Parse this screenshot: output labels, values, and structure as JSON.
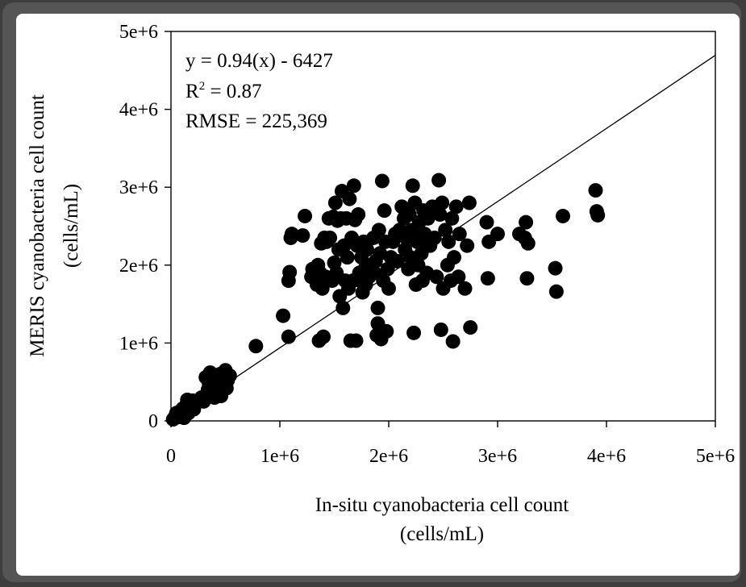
{
  "chart_data": {
    "type": "scatter",
    "xlabel": [
      "In-situ cyanobacteria cell count",
      "(cells/mL)"
    ],
    "ylabel": [
      "MERIS cyanobacteria cell count",
      "(cells/mL)"
    ],
    "xlim": [
      0,
      5000000
    ],
    "ylim": [
      0,
      5000000
    ],
    "x_ticks": [
      0,
      1000000,
      2000000,
      3000000,
      4000000,
      5000000
    ],
    "x_tick_labels": [
      "0",
      "1e+6",
      "2e+6",
      "3e+6",
      "4e+6",
      "5e+6"
    ],
    "y_ticks": [
      0,
      1000000,
      2000000,
      3000000,
      4000000,
      5000000
    ],
    "y_tick_labels": [
      "0",
      "1e+6",
      "2e+6",
      "3e+6",
      "4e+6",
      "5e+6"
    ],
    "grid": false,
    "annotation": {
      "equation": "y = 0.94(x) - 6427",
      "r2_prefix": "R",
      "r2_exp": "2",
      "r2_value": " = 0.87",
      "rmse": "RMSE = 225,369"
    },
    "fit_line": {
      "slope": 0.94,
      "intercept": -6427
    },
    "points": [
      [
        20000,
        20000
      ],
      [
        40000,
        60000
      ],
      [
        50000,
        100000
      ],
      [
        70000,
        50000
      ],
      [
        80000,
        120000
      ],
      [
        100000,
        80000
      ],
      [
        110000,
        160000
      ],
      [
        120000,
        40000
      ],
      [
        130000,
        120000
      ],
      [
        140000,
        200000
      ],
      [
        150000,
        270000
      ],
      [
        160000,
        100000
      ],
      [
        170000,
        180000
      ],
      [
        180000,
        220000
      ],
      [
        200000,
        260000
      ],
      [
        210000,
        150000
      ],
      [
        230000,
        230000
      ],
      [
        250000,
        260000
      ],
      [
        280000,
        300000
      ],
      [
        300000,
        250000
      ],
      [
        320000,
        560000
      ],
      [
        340000,
        400000
      ],
      [
        350000,
        480000
      ],
      [
        360000,
        620000
      ],
      [
        370000,
        350000
      ],
      [
        380000,
        450000
      ],
      [
        400000,
        300000
      ],
      [
        410000,
        560000
      ],
      [
        420000,
        400000
      ],
      [
        430000,
        500000
      ],
      [
        440000,
        380000
      ],
      [
        450000,
        600000
      ],
      [
        460000,
        320000
      ],
      [
        470000,
        460000
      ],
      [
        480000,
        550000
      ],
      [
        500000,
        650000
      ],
      [
        510000,
        420000
      ],
      [
        520000,
        520000
      ],
      [
        540000,
        580000
      ],
      [
        780000,
        960000
      ],
      [
        1030000,
        1350000
      ],
      [
        1080000,
        1080000
      ],
      [
        1080000,
        1800000
      ],
      [
        1090000,
        1910000
      ],
      [
        1100000,
        2350000
      ],
      [
        1110000,
        2400000
      ],
      [
        1210000,
        2380000
      ],
      [
        1230000,
        2630000
      ],
      [
        1290000,
        1850000
      ],
      [
        1300000,
        1950000
      ],
      [
        1340000,
        1750000
      ],
      [
        1350000,
        2000000
      ],
      [
        1360000,
        1030000
      ],
      [
        1370000,
        1900000
      ],
      [
        1380000,
        2280000
      ],
      [
        1390000,
        1700000
      ],
      [
        1400000,
        1080000
      ],
      [
        1410000,
        2350000
      ],
      [
        1420000,
        1850000
      ],
      [
        1430000,
        2300000
      ],
      [
        1450000,
        2600000
      ],
      [
        1460000,
        2350000
      ],
      [
        1480000,
        1800000
      ],
      [
        1490000,
        2620000
      ],
      [
        1500000,
        2030000
      ],
      [
        1510000,
        2800000
      ],
      [
        1520000,
        1900000
      ],
      [
        1530000,
        2570000
      ],
      [
        1540000,
        2200000
      ],
      [
        1550000,
        1600000
      ],
      [
        1560000,
        2600000
      ],
      [
        1570000,
        2950000
      ],
      [
        1580000,
        1450000
      ],
      [
        1590000,
        2250000
      ],
      [
        1600000,
        1800000
      ],
      [
        1610000,
        2600000
      ],
      [
        1620000,
        2100000
      ],
      [
        1630000,
        1700000
      ],
      [
        1640000,
        2850000
      ],
      [
        1650000,
        1030000
      ],
      [
        1660000,
        2350000
      ],
      [
        1670000,
        1800000
      ],
      [
        1680000,
        3020000
      ],
      [
        1690000,
        2580000
      ],
      [
        1700000,
        1030000
      ],
      [
        1710000,
        2250000
      ],
      [
        1720000,
        2650000
      ],
      [
        1730000,
        1900000
      ],
      [
        1740000,
        1800000
      ],
      [
        1750000,
        2100000
      ],
      [
        1760000,
        1650000
      ],
      [
        1770000,
        2300000
      ],
      [
        1780000,
        1950000
      ],
      [
        1790000,
        1750000
      ],
      [
        1800000,
        2200000
      ],
      [
        1820000,
        1850000
      ],
      [
        1840000,
        2000000
      ],
      [
        1860000,
        2350000
      ],
      [
        1870000,
        1900000
      ],
      [
        1880000,
        2050000
      ],
      [
        1890000,
        1100000
      ],
      [
        1900000,
        1250000
      ],
      [
        1900000,
        1450000
      ],
      [
        1910000,
        2450000
      ],
      [
        1920000,
        2150000
      ],
      [
        1930000,
        1050000
      ],
      [
        1940000,
        3080000
      ],
      [
        1950000,
        1800000
      ],
      [
        1960000,
        2700000
      ],
      [
        1970000,
        2300000
      ],
      [
        1980000,
        1150000
      ],
      [
        1990000,
        1950000
      ],
      [
        2000000,
        1700000
      ],
      [
        2020000,
        2100000
      ],
      [
        2040000,
        2300000
      ],
      [
        2060000,
        2400000
      ],
      [
        2080000,
        2050000
      ],
      [
        2100000,
        2450000
      ],
      [
        2120000,
        2750000
      ],
      [
        2140000,
        2600000
      ],
      [
        2150000,
        2200000
      ],
      [
        2160000,
        2350000
      ],
      [
        2180000,
        1950000
      ],
      [
        2190000,
        2650000
      ],
      [
        2200000,
        2100000
      ],
      [
        2210000,
        2450000
      ],
      [
        2220000,
        3020000
      ],
      [
        2230000,
        1130000
      ],
      [
        2240000,
        2800000
      ],
      [
        2250000,
        1750000
      ],
      [
        2260000,
        2300000
      ],
      [
        2270000,
        2000000
      ],
      [
        2280000,
        2550000
      ],
      [
        2300000,
        2150000
      ],
      [
        2310000,
        1800000
      ],
      [
        2320000,
        2700000
      ],
      [
        2330000,
        2400000
      ],
      [
        2350000,
        1900000
      ],
      [
        2360000,
        2600000
      ],
      [
        2380000,
        2250000
      ],
      [
        2400000,
        2750000
      ],
      [
        2420000,
        2350000
      ],
      [
        2440000,
        1850000
      ],
      [
        2460000,
        3090000
      ],
      [
        2470000,
        2650000
      ],
      [
        2480000,
        1170000
      ],
      [
        2490000,
        2800000
      ],
      [
        2500000,
        1700000
      ],
      [
        2520000,
        2450000
      ],
      [
        2540000,
        2000000
      ],
      [
        2550000,
        2300000
      ],
      [
        2570000,
        1800000
      ],
      [
        2580000,
        2600000
      ],
      [
        2590000,
        1020000
      ],
      [
        2600000,
        2100000
      ],
      [
        2620000,
        2750000
      ],
      [
        2640000,
        1850000
      ],
      [
        2650000,
        2400000
      ],
      [
        2700000,
        1700000
      ],
      [
        2720000,
        2250000
      ],
      [
        2740000,
        2800000
      ],
      [
        2750000,
        1200000
      ],
      [
        2900000,
        2550000
      ],
      [
        2910000,
        1830000
      ],
      [
        2920000,
        2300000
      ],
      [
        3000000,
        2400000
      ],
      [
        3200000,
        2400000
      ],
      [
        3250000,
        2350000
      ],
      [
        3260000,
        2550000
      ],
      [
        3270000,
        1830000
      ],
      [
        3280000,
        2280000
      ],
      [
        3530000,
        1960000
      ],
      [
        3540000,
        1660000
      ],
      [
        3600000,
        2630000
      ],
      [
        3900000,
        2960000
      ],
      [
        3910000,
        2690000
      ],
      [
        3920000,
        2640000
      ]
    ]
  }
}
